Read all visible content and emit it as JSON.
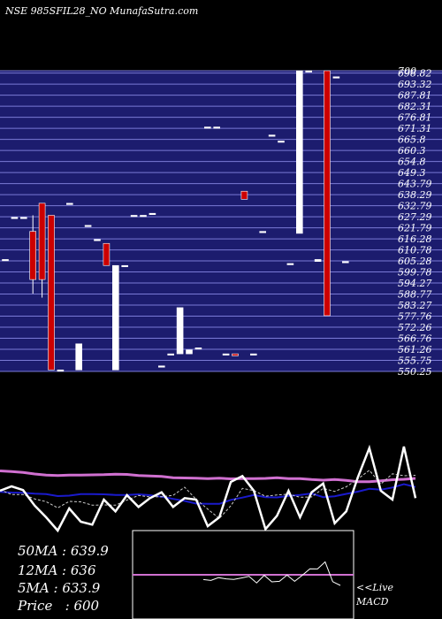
{
  "title": "NSE 985SFIL28_NO MunafaSutra.com",
  "stats": {
    "ma50": "50MA : 639.9",
    "ma12": "12MA : 636",
    "ma5": "5MA : 633.9",
    "price": "Price   : 600"
  },
  "macd_label": {
    "live": "<<Live",
    "macd": "MACD"
  },
  "colors": {
    "background": "#000000",
    "band": "#1c1c6e",
    "band_line": "#7a7ad6",
    "up_candle": "#ffffff",
    "down_candle": "#cc0000",
    "ma_long": "#d070d0",
    "ma_mid": "#1a1acc",
    "price_line": "#ffffff",
    "macd_zero": "#d070d0",
    "macd_line": "#ffffff"
  },
  "chart_data": [
    {
      "type": "candlestick",
      "title": "NSE 985SFIL28_NO MunafaSutra.com",
      "ylim": [
        550.25,
        700
      ],
      "y_tick_labels": [
        "700",
        "698.82",
        "693.32",
        "687.81",
        "682.31",
        "676.81",
        "671.31",
        "665.8",
        "660.3",
        "654.8",
        "649.3",
        "643.79",
        "638.29",
        "632.79",
        "627.29",
        "621.79",
        "616.28",
        "610.78",
        "605.28",
        "599.78",
        "594.27",
        "588.77",
        "583.27",
        "577.76",
        "572.26",
        "566.76",
        "561.26",
        "555.75",
        "550.25"
      ],
      "candles": [
        {
          "o": 606,
          "h": 606,
          "l": 606,
          "c": 606
        },
        {
          "o": 627,
          "h": 627,
          "l": 627,
          "c": 627
        },
        {
          "o": 627,
          "h": 627,
          "l": 627,
          "c": 627
        },
        {
          "o": 620,
          "h": 628,
          "l": 589,
          "c": 596
        },
        {
          "o": 634,
          "h": 634,
          "l": 587,
          "c": 596
        },
        {
          "o": 628,
          "h": 628,
          "l": 551,
          "c": 551
        },
        {
          "o": 551,
          "h": 551,
          "l": 551,
          "c": 551
        },
        {
          "o": 634,
          "h": 634,
          "l": 634,
          "c": 634
        },
        {
          "o": 551,
          "h": 564,
          "l": 551,
          "c": 564
        },
        {
          "o": 623,
          "h": 623,
          "l": 623,
          "c": 623
        },
        {
          "o": 616,
          "h": 616,
          "l": 616,
          "c": 616
        },
        {
          "o": 614,
          "h": 614,
          "l": 603,
          "c": 603
        },
        {
          "o": 551,
          "h": 603,
          "l": 551,
          "c": 603
        },
        {
          "o": 603,
          "h": 603,
          "l": 603,
          "c": 603
        },
        {
          "o": 628,
          "h": 628,
          "l": 628,
          "c": 628
        },
        {
          "o": 628,
          "h": 628,
          "l": 628,
          "c": 628
        },
        {
          "o": 629,
          "h": 629,
          "l": 629,
          "c": 629
        },
        {
          "o": 553,
          "h": 553,
          "l": 553,
          "c": 553
        },
        {
          "o": 559,
          "h": 559,
          "l": 559,
          "c": 559
        },
        {
          "o": 559,
          "h": 582,
          "l": 559,
          "c": 582
        },
        {
          "o": 559,
          "h": 561,
          "l": 559,
          "c": 561
        },
        {
          "o": 562,
          "h": 562,
          "l": 562,
          "c": 562
        },
        {
          "o": 672,
          "h": 672,
          "l": 672,
          "c": 672
        },
        {
          "o": 672,
          "h": 672,
          "l": 672,
          "c": 672
        },
        {
          "o": 559,
          "h": 559,
          "l": 559,
          "c": 559
        },
        {
          "o": 559,
          "h": 559,
          "l": 558,
          "c": 558
        },
        {
          "o": 640,
          "h": 640,
          "l": 636,
          "c": 636
        },
        {
          "o": 559,
          "h": 559,
          "l": 559,
          "c": 559
        },
        {
          "o": 620,
          "h": 620,
          "l": 620,
          "c": 620
        },
        {
          "o": 668,
          "h": 668,
          "l": 668,
          "c": 668
        },
        {
          "o": 665,
          "h": 665,
          "l": 665,
          "c": 665
        },
        {
          "o": 604,
          "h": 604,
          "l": 604,
          "c": 604
        },
        {
          "o": 619,
          "h": 700,
          "l": 619,
          "c": 700
        },
        {
          "o": 700,
          "h": 700,
          "l": 700,
          "c": 700
        },
        {
          "o": 605,
          "h": 605,
          "l": 605,
          "c": 606
        },
        {
          "o": 700,
          "h": 700,
          "l": 578,
          "c": 578
        },
        {
          "o": 697,
          "h": 697,
          "l": 697,
          "c": 697
        },
        {
          "o": 605,
          "h": 605,
          "l": 605,
          "c": 605
        }
      ]
    },
    {
      "type": "line",
      "series": [
        {
          "values": [
            630.5,
            630.1,
            629.4,
            628.4,
            627.7,
            627.4,
            627.6,
            627.6,
            627.8,
            627.9,
            628.2,
            628.1,
            627.4,
            627.1,
            626.7,
            625.9,
            625.7,
            625.6,
            625.3,
            625.5,
            625.1,
            625.3,
            625.3,
            625.4,
            625.8,
            625.3,
            625.2,
            624.6,
            624.2,
            624.7,
            624.1,
            623.2,
            623.2,
            623.8,
            624.5,
            624.8,
            625.4
          ]
        },
        {
          "values": [
            616.3,
            615.8,
            615.6,
            615.1,
            614.7,
            613.4,
            613.7,
            614.7,
            614.7,
            614.6,
            614.2,
            614.1,
            614.6,
            614.0,
            612.9,
            611.5,
            610.1,
            608.3,
            608.1,
            608.1,
            610.8,
            612.4,
            614.1,
            612.7,
            612.5,
            613.5,
            614.1,
            615.2,
            612.7,
            613.3,
            614.9,
            616.4,
            618.3,
            617.7,
            619.2,
            621.5,
            619.6
          ]
        },
        {
          "values": [
            617.7,
            614.5,
            614.5,
            611.5,
            609.6,
            605.4,
            609.8,
            609.5,
            607.2,
            607.4,
            607.2,
            610.7,
            613.8,
            612.8,
            613.0,
            613.9,
            619.4,
            611.2,
            604.6,
            598.2,
            606.8,
            618.6,
            617.1,
            613.3,
            614.2,
            614.7,
            612.6,
            612.8,
            618.6,
            616.6,
            619.7,
            625.0,
            630.9,
            621.5,
            628.5,
            627.2,
            627.5
          ]
        },
        {
          "values": [
            617.0,
            620.0,
            617.5,
            607.0,
            599.0,
            590.0,
            605.0,
            596.0,
            594.0,
            611.0,
            603.0,
            614.0,
            606.0,
            612.0,
            616.0,
            606.0,
            612.0,
            611.0,
            593.0,
            599.0,
            623.0,
            627.0,
            617.0,
            591.0,
            600.0,
            617.0,
            599.0,
            616.0,
            622.0,
            595.0,
            603.0,
            626.0,
            646.0,
            617.0,
            611.0,
            647.0,
            612.0
          ]
        }
      ]
    },
    {
      "type": "line",
      "series": [
        {
          "values": [
            0,
            0,
            0,
            0,
            0,
            0,
            0,
            0,
            0,
            0,
            0,
            0,
            0,
            0,
            0,
            0,
            0,
            0,
            -2.7,
            -3.2,
            -1.6,
            -2.3,
            -2.6,
            -1.8,
            -0.9,
            -4.6,
            -0.3,
            -4.0,
            -3.7,
            -0.2,
            -3.7,
            -0.3,
            3.4,
            3.3,
            7.3,
            -3.9,
            -6.0
          ]
        }
      ]
    }
  ]
}
